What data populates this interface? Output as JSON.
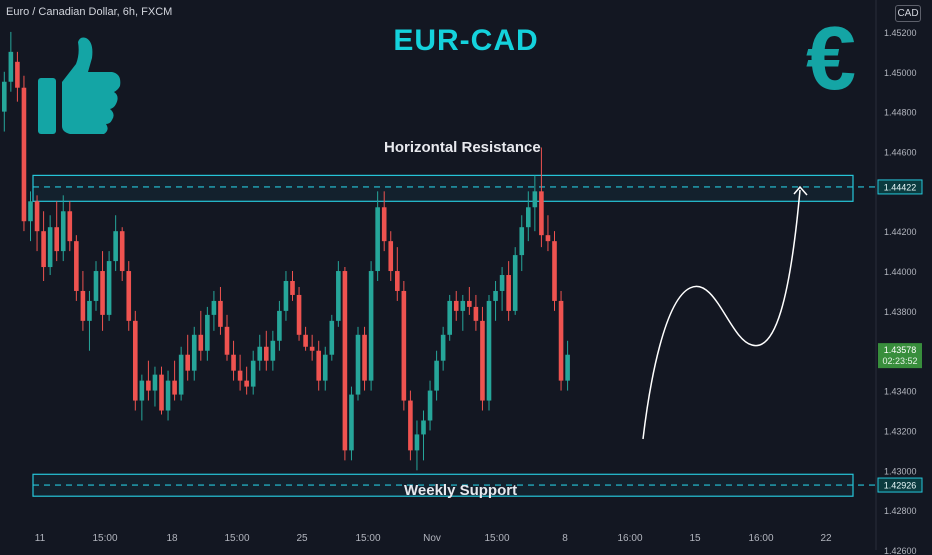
{
  "header": {
    "symbol_title": "Euro / Canadian Dollar, 6h, FXCM",
    "currency": "CAD",
    "headline": "EUR-CAD"
  },
  "annotations": {
    "resistance_label": "Horizontal Resistance",
    "support_label": "Weekly Support",
    "euro_symbol": "€"
  },
  "colors": {
    "bull": "#26a69a",
    "bear": "#ef5350",
    "accent": "#14d2dc",
    "zone": "#26c6da",
    "icon": "#14a5a5",
    "price_tag": "#388e3c"
  },
  "icons": [
    "thumbs-up-icon",
    "euro-icon"
  ],
  "chart_data": {
    "type": "candlestick",
    "title": "EUR-CAD",
    "ylim": [
      1.426,
      1.453
    ],
    "y_ticks": [
      "1.45200",
      "1.45000",
      "1.44800",
      "1.44600",
      "1.44200",
      "1.44000",
      "1.43800",
      "1.43400",
      "1.43200",
      "1.43000",
      "1.42800",
      "1.42600"
    ],
    "x_ticks": [
      "11",
      "15:00",
      "18",
      "15:00",
      "25",
      "15:00",
      "Nov",
      "15:00",
      "8",
      "16:00",
      "15",
      "16:00",
      "22"
    ],
    "resistance_level": "1.44422",
    "resistance_zone": [
      1.4435,
      1.4448
    ],
    "support_level": "1.42926",
    "support_zone": [
      1.4287,
      1.4298
    ],
    "last_price": "1.43578",
    "countdown": "02:23:52",
    "grid": false,
    "series": [
      {
        "values": [
          [
            1.448,
            1.45,
            1.447,
            1.4495
          ],
          [
            1.4495,
            1.452,
            1.449,
            1.451
          ],
          [
            1.4505,
            1.451,
            1.4485,
            1.4492
          ],
          [
            1.4492,
            1.4498,
            1.442,
            1.4425
          ],
          [
            1.4425,
            1.444,
            1.4415,
            1.4435
          ],
          [
            1.4435,
            1.4438,
            1.441,
            1.442
          ],
          [
            1.442,
            1.443,
            1.4395,
            1.4402
          ],
          [
            1.4402,
            1.4428,
            1.4398,
            1.4422
          ],
          [
            1.4422,
            1.4435,
            1.4405,
            1.441
          ],
          [
            1.441,
            1.4438,
            1.4405,
            1.443
          ],
          [
            1.443,
            1.4435,
            1.441,
            1.4415
          ],
          [
            1.4415,
            1.4418,
            1.4385,
            1.439
          ],
          [
            1.439,
            1.44,
            1.437,
            1.4375
          ],
          [
            1.4375,
            1.439,
            1.436,
            1.4385
          ],
          [
            1.4385,
            1.4405,
            1.438,
            1.44
          ],
          [
            1.44,
            1.441,
            1.437,
            1.4378
          ],
          [
            1.4378,
            1.441,
            1.4375,
            1.4405
          ],
          [
            1.4405,
            1.4428,
            1.44,
            1.442
          ],
          [
            1.442,
            1.4422,
            1.4395,
            1.44
          ],
          [
            1.44,
            1.4405,
            1.437,
            1.4375
          ],
          [
            1.4375,
            1.438,
            1.433,
            1.4335
          ],
          [
            1.4335,
            1.4348,
            1.4325,
            1.4345
          ],
          [
            1.4345,
            1.4355,
            1.4335,
            1.434
          ],
          [
            1.434,
            1.4352,
            1.4332,
            1.4348
          ],
          [
            1.4348,
            1.4352,
            1.4328,
            1.433
          ],
          [
            1.433,
            1.435,
            1.4325,
            1.4345
          ],
          [
            1.4345,
            1.4355,
            1.4335,
            1.4338
          ],
          [
            1.4338,
            1.4362,
            1.4335,
            1.4358
          ],
          [
            1.4358,
            1.4368,
            1.4345,
            1.435
          ],
          [
            1.435,
            1.4372,
            1.4345,
            1.4368
          ],
          [
            1.4368,
            1.438,
            1.4355,
            1.436
          ],
          [
            1.436,
            1.4382,
            1.4355,
            1.4378
          ],
          [
            1.4378,
            1.439,
            1.437,
            1.4385
          ],
          [
            1.4385,
            1.4392,
            1.4368,
            1.4372
          ],
          [
            1.4372,
            1.4378,
            1.4355,
            1.4358
          ],
          [
            1.4358,
            1.4365,
            1.4345,
            1.435
          ],
          [
            1.435,
            1.4358,
            1.434,
            1.4345
          ],
          [
            1.4345,
            1.4352,
            1.4338,
            1.4342
          ],
          [
            1.4342,
            1.436,
            1.4338,
            1.4355
          ],
          [
            1.4355,
            1.4368,
            1.435,
            1.4362
          ],
          [
            1.4362,
            1.437,
            1.435,
            1.4355
          ],
          [
            1.4355,
            1.437,
            1.435,
            1.4365
          ],
          [
            1.4365,
            1.4385,
            1.436,
            1.438
          ],
          [
            1.438,
            1.44,
            1.4375,
            1.4395
          ],
          [
            1.4395,
            1.44,
            1.4385,
            1.4388
          ],
          [
            1.4388,
            1.4392,
            1.4365,
            1.4368
          ],
          [
            1.4368,
            1.4372,
            1.436,
            1.4362
          ],
          [
            1.4362,
            1.4368,
            1.4355,
            1.436
          ],
          [
            1.436,
            1.4365,
            1.434,
            1.4345
          ],
          [
            1.4345,
            1.4362,
            1.434,
            1.4358
          ],
          [
            1.4358,
            1.4378,
            1.4355,
            1.4375
          ],
          [
            1.4375,
            1.4405,
            1.4372,
            1.44
          ],
          [
            1.44,
            1.4402,
            1.4305,
            1.431
          ],
          [
            1.431,
            1.4342,
            1.4305,
            1.4338
          ],
          [
            1.4338,
            1.4372,
            1.4335,
            1.4368
          ],
          [
            1.4368,
            1.4372,
            1.434,
            1.4345
          ],
          [
            1.4345,
            1.4405,
            1.434,
            1.44
          ],
          [
            1.44,
            1.444,
            1.4395,
            1.4432
          ],
          [
            1.4432,
            1.444,
            1.441,
            1.4415
          ],
          [
            1.4415,
            1.442,
            1.4395,
            1.44
          ],
          [
            1.44,
            1.4412,
            1.4385,
            1.439
          ],
          [
            1.439,
            1.4395,
            1.433,
            1.4335
          ],
          [
            1.4335,
            1.434,
            1.4305,
            1.431
          ],
          [
            1.431,
            1.4325,
            1.43,
            1.4318
          ],
          [
            1.4318,
            1.433,
            1.4305,
            1.4325
          ],
          [
            1.4325,
            1.4345,
            1.432,
            1.434
          ],
          [
            1.434,
            1.436,
            1.4335,
            1.4355
          ],
          [
            1.4355,
            1.4372,
            1.435,
            1.4368
          ],
          [
            1.4368,
            1.4388,
            1.4365,
            1.4385
          ],
          [
            1.4385,
            1.439,
            1.4375,
            1.438
          ],
          [
            1.438,
            1.4388,
            1.437,
            1.4385
          ],
          [
            1.4385,
            1.4392,
            1.4378,
            1.4382
          ],
          [
            1.4382,
            1.4388,
            1.437,
            1.4375
          ],
          [
            1.4375,
            1.4382,
            1.433,
            1.4335
          ],
          [
            1.4335,
            1.4388,
            1.433,
            1.4385
          ],
          [
            1.4385,
            1.4395,
            1.4375,
            1.439
          ],
          [
            1.439,
            1.4402,
            1.438,
            1.4398
          ],
          [
            1.4398,
            1.4405,
            1.4375,
            1.438
          ],
          [
            1.438,
            1.4412,
            1.4378,
            1.4408
          ],
          [
            1.4408,
            1.4428,
            1.44,
            1.4422
          ],
          [
            1.4422,
            1.444,
            1.4415,
            1.4432
          ],
          [
            1.4432,
            1.4448,
            1.442,
            1.444
          ],
          [
            1.444,
            1.4462,
            1.4412,
            1.4418
          ],
          [
            1.4418,
            1.4428,
            1.441,
            1.4415
          ],
          [
            1.4415,
            1.442,
            1.438,
            1.4385
          ],
          [
            1.4385,
            1.439,
            1.434,
            1.4345
          ],
          [
            1.4345,
            1.4365,
            1.434,
            1.4358
          ]
        ]
      }
    ],
    "projection": "rise from support, dip, then climb back toward resistance"
  }
}
